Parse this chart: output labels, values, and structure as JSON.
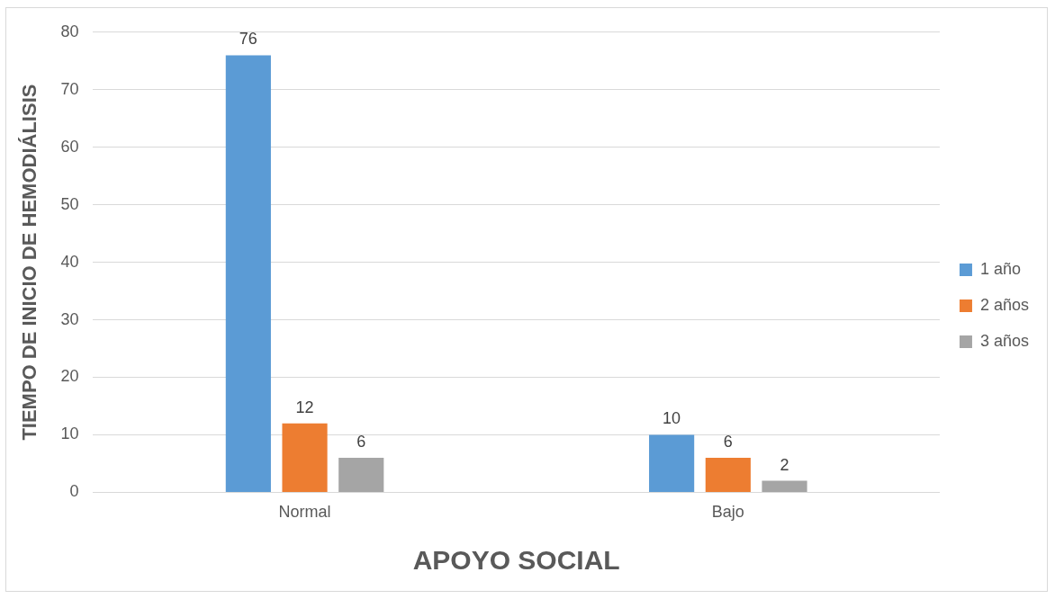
{
  "chart_data": {
    "type": "bar",
    "xlabel": "APOYO SOCIAL",
    "ylabel": "TIEMPO DE INICIO DE HEMODIÁLISIS",
    "categories": [
      "Normal",
      "Bajo"
    ],
    "series": [
      {
        "name": "1 año",
        "color": "#5b9bd5",
        "values": [
          76,
          10
        ]
      },
      {
        "name": "2 años",
        "color": "#ed7d31",
        "values": [
          12,
          6
        ]
      },
      {
        "name": "3 años",
        "color": "#a5a5a5",
        "values": [
          6,
          2
        ]
      }
    ],
    "ylim": [
      0,
      80
    ],
    "yticks": [
      0,
      10,
      20,
      30,
      40,
      50,
      60,
      70,
      80
    ],
    "grid": "y",
    "legend": "right",
    "data_labels": true
  }
}
